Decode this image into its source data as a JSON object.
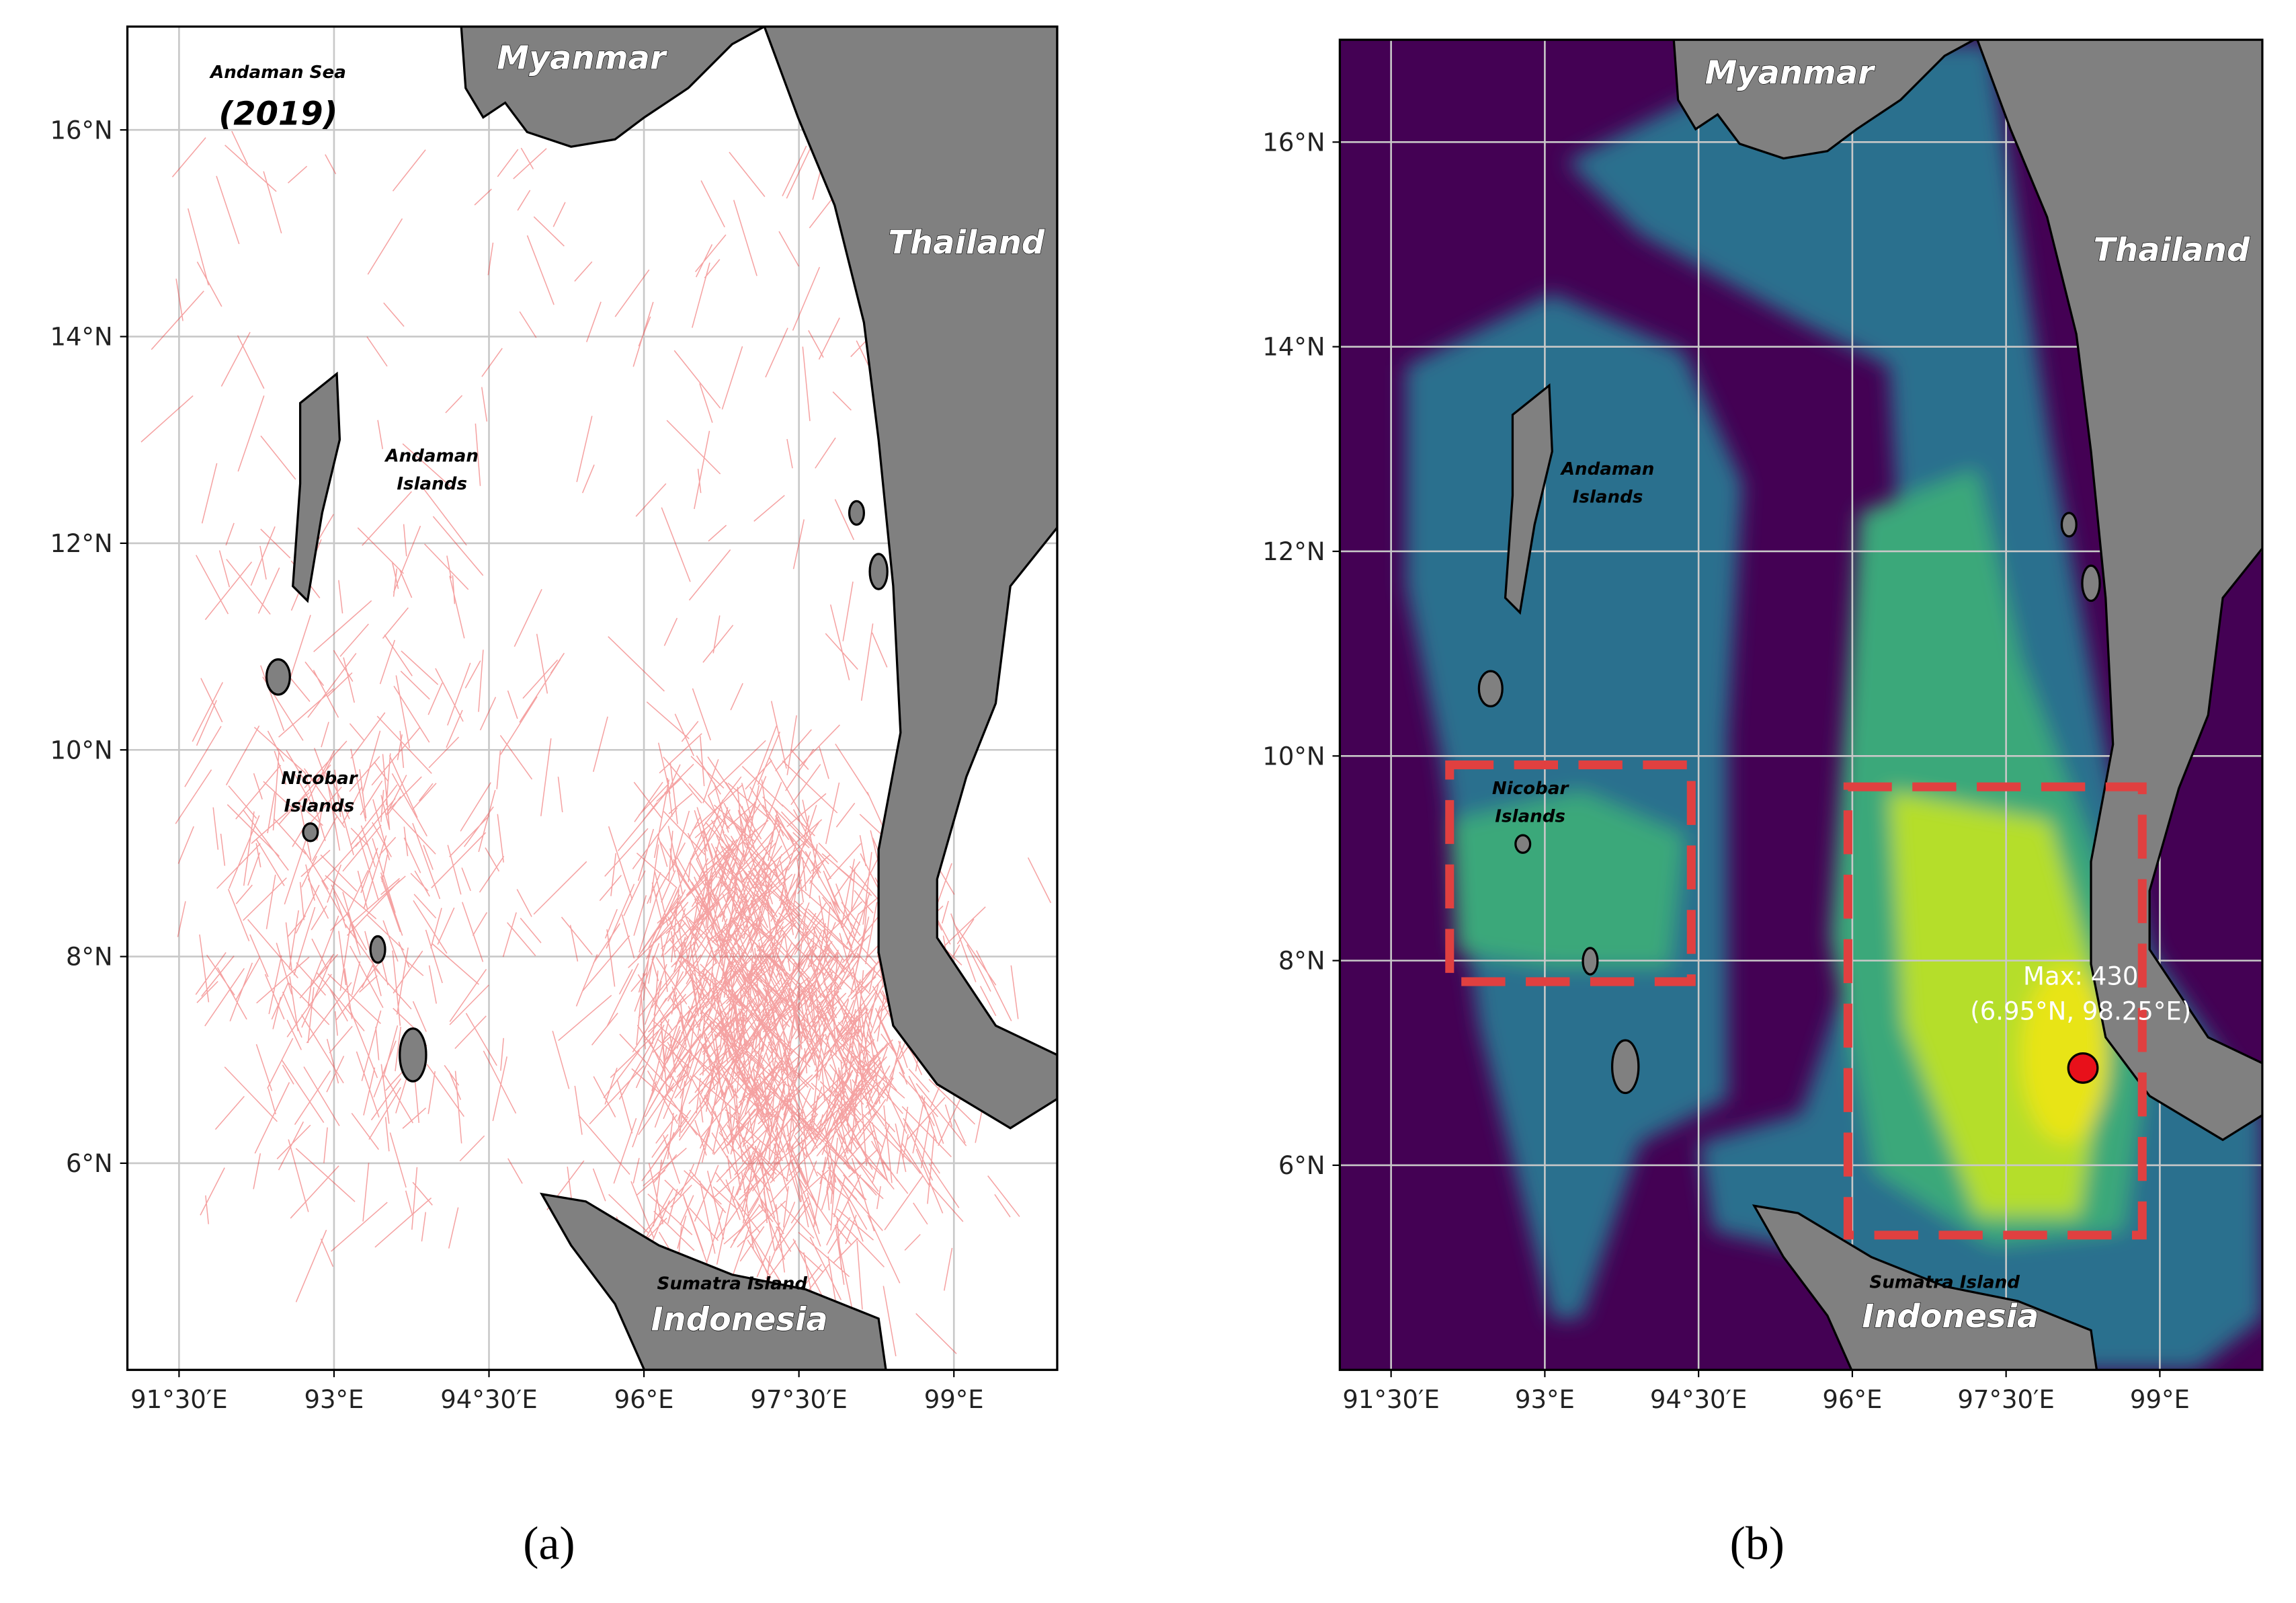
{
  "maps": [
    {
      "type": "map",
      "title": [
        "Andaman Sea",
        "(2019)"
      ],
      "places": [
        "Myanmar",
        "Thailand",
        "Andaman",
        "Islands",
        "Nicobar",
        "Islands",
        "Sumatra Island",
        "Indonesia"
      ],
      "caption": "(a)",
      "xlim": [
        91,
        100
      ],
      "ylim": [
        4,
        17
      ],
      "xticks": [
        {
          "value": 91.5,
          "label": "91°30′E"
        },
        {
          "value": 93,
          "label": "93°E"
        },
        {
          "value": 94.5,
          "label": "94°30′E"
        },
        {
          "value": 96,
          "label": "96°E"
        },
        {
          "value": 97.5,
          "label": "97°30′E"
        },
        {
          "value": 99,
          "label": "99°E"
        }
      ],
      "yticks": [
        {
          "value": 6,
          "label": "6°N"
        },
        {
          "value": 8,
          "label": "8°N"
        },
        {
          "value": 10,
          "label": "10°N"
        },
        {
          "value": 12,
          "label": "12°N"
        },
        {
          "value": 14,
          "label": "14°N"
        },
        {
          "value": 16,
          "label": "16°N"
        }
      ],
      "grid": true
    },
    {
      "type": "map",
      "places": [
        "Myanmar",
        "Thailand",
        "Andaman",
        "Islands",
        "Nicobar",
        "Islands",
        "Sumatra Island",
        "Indonesia"
      ],
      "annotation": [
        "Max: 430",
        "(6.95°N, 98.25°E)"
      ],
      "max_point": {
        "lat": 6.95,
        "lon": 98.25
      },
      "caption": "(b)",
      "xlim": [
        91,
        100
      ],
      "ylim": [
        4,
        17
      ],
      "xticks": [
        {
          "value": 91.5,
          "label": "91°30′E"
        },
        {
          "value": 93,
          "label": "93°E"
        },
        {
          "value": 94.5,
          "label": "94°30′E"
        },
        {
          "value": 96,
          "label": "96°E"
        },
        {
          "value": 97.5,
          "label": "97°30′E"
        },
        {
          "value": 99,
          "label": "99°E"
        }
      ],
      "yticks": [
        {
          "value": 6,
          "label": "6°N"
        },
        {
          "value": 8,
          "label": "8°N"
        },
        {
          "value": 10,
          "label": "10°N"
        },
        {
          "value": 12,
          "label": "12°N"
        },
        {
          "value": 14,
          "label": "14°N"
        },
        {
          "value": 16,
          "label": "16°N"
        }
      ],
      "grid": true
    }
  ]
}
